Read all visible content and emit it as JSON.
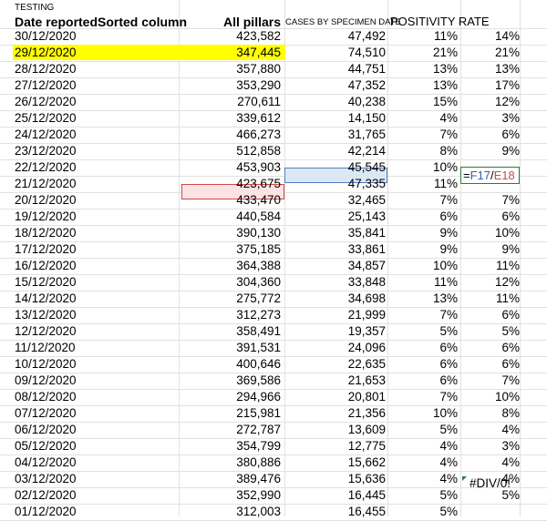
{
  "sheet_title": "TESTING",
  "headers": {
    "date": "Date reportedSorted column",
    "pillars": "All pillars",
    "cases": "CASES BY SPECIMEN DATE",
    "positivity": "POSITIVITY RATE"
  },
  "editing_formula": {
    "prefix": "=",
    "ref1": "F17",
    "op": "/",
    "ref2": "E18"
  },
  "error_value": "#DIV/0!",
  "colors": {
    "highlight_yellow": "#ffff00",
    "selection_blue": "#4f7ebf",
    "selection_red": "#d14848",
    "edit_border_green": "#2e7a3c",
    "gridline": "#e1e1e1"
  },
  "rows": [
    {
      "date": "30/12/2020",
      "pillars": "423,582",
      "cases": "47,492",
      "rate": "11%",
      "rate2": "14%"
    },
    {
      "date": "29/12/2020",
      "pillars": "347,445",
      "cases": "74,510",
      "rate": "21%",
      "rate2": "21%"
    },
    {
      "date": "28/12/2020",
      "pillars": "357,880",
      "cases": "44,751",
      "rate": "13%",
      "rate2": "13%"
    },
    {
      "date": "27/12/2020",
      "pillars": "353,290",
      "cases": "47,352",
      "rate": "13%",
      "rate2": "17%"
    },
    {
      "date": "26/12/2020",
      "pillars": "270,611",
      "cases": "40,238",
      "rate": "15%",
      "rate2": "12%"
    },
    {
      "date": "25/12/2020",
      "pillars": "339,612",
      "cases": "14,150",
      "rate": "4%",
      "rate2": "3%"
    },
    {
      "date": "24/12/2020",
      "pillars": "466,273",
      "cases": "31,765",
      "rate": "7%",
      "rate2": "6%"
    },
    {
      "date": "23/12/2020",
      "pillars": "512,858",
      "cases": "42,214",
      "rate": "8%",
      "rate2": "9%"
    },
    {
      "date": "22/12/2020",
      "pillars": "453,903",
      "cases": "45,545",
      "rate": "10%",
      "rate2": ""
    },
    {
      "date": "21/12/2020",
      "pillars": "423,675",
      "cases": "47,335",
      "rate": "11%",
      "rate2": ""
    },
    {
      "date": "20/12/2020",
      "pillars": "433,470",
      "cases": "32,465",
      "rate": "7%",
      "rate2": "7%"
    },
    {
      "date": "19/12/2020",
      "pillars": "440,584",
      "cases": "25,143",
      "rate": "6%",
      "rate2": "6%"
    },
    {
      "date": "18/12/2020",
      "pillars": "390,130",
      "cases": "35,841",
      "rate": "9%",
      "rate2": "10%"
    },
    {
      "date": "17/12/2020",
      "pillars": "375,185",
      "cases": "33,861",
      "rate": "9%",
      "rate2": "9%"
    },
    {
      "date": "16/12/2020",
      "pillars": "364,388",
      "cases": "34,857",
      "rate": "10%",
      "rate2": "11%"
    },
    {
      "date": "15/12/2020",
      "pillars": "304,360",
      "cases": "33,848",
      "rate": "11%",
      "rate2": "12%"
    },
    {
      "date": "14/12/2020",
      "pillars": "275,772",
      "cases": "34,698",
      "rate": "13%",
      "rate2": "11%"
    },
    {
      "date": "13/12/2020",
      "pillars": "312,273",
      "cases": "21,999",
      "rate": "7%",
      "rate2": "6%"
    },
    {
      "date": "12/12/2020",
      "pillars": "358,491",
      "cases": "19,357",
      "rate": "5%",
      "rate2": "5%"
    },
    {
      "date": "11/12/2020",
      "pillars": "391,531",
      "cases": "24,096",
      "rate": "6%",
      "rate2": "6%"
    },
    {
      "date": "10/12/2020",
      "pillars": "400,646",
      "cases": "22,635",
      "rate": "6%",
      "rate2": "6%"
    },
    {
      "date": "09/12/2020",
      "pillars": "369,586",
      "cases": "21,653",
      "rate": "6%",
      "rate2": "7%"
    },
    {
      "date": "08/12/2020",
      "pillars": "294,966",
      "cases": "20,801",
      "rate": "7%",
      "rate2": "10%"
    },
    {
      "date": "07/12/2020",
      "pillars": "215,981",
      "cases": "21,356",
      "rate": "10%",
      "rate2": "8%"
    },
    {
      "date": "06/12/2020",
      "pillars": "272,787",
      "cases": "13,609",
      "rate": "5%",
      "rate2": "4%"
    },
    {
      "date": "05/12/2020",
      "pillars": "354,799",
      "cases": "12,775",
      "rate": "4%",
      "rate2": "3%"
    },
    {
      "date": "04/12/2020",
      "pillars": "380,886",
      "cases": "15,662",
      "rate": "4%",
      "rate2": "4%"
    },
    {
      "date": "03/12/2020",
      "pillars": "389,476",
      "cases": "15,636",
      "rate": "4%",
      "rate2": "4%"
    },
    {
      "date": "02/12/2020",
      "pillars": "352,990",
      "cases": "16,445",
      "rate": "5%",
      "rate2": "5%"
    },
    {
      "date": "01/12/2020",
      "pillars": "312,003",
      "cases": "16,455",
      "rate": "5%",
      "rate2": ""
    }
  ]
}
